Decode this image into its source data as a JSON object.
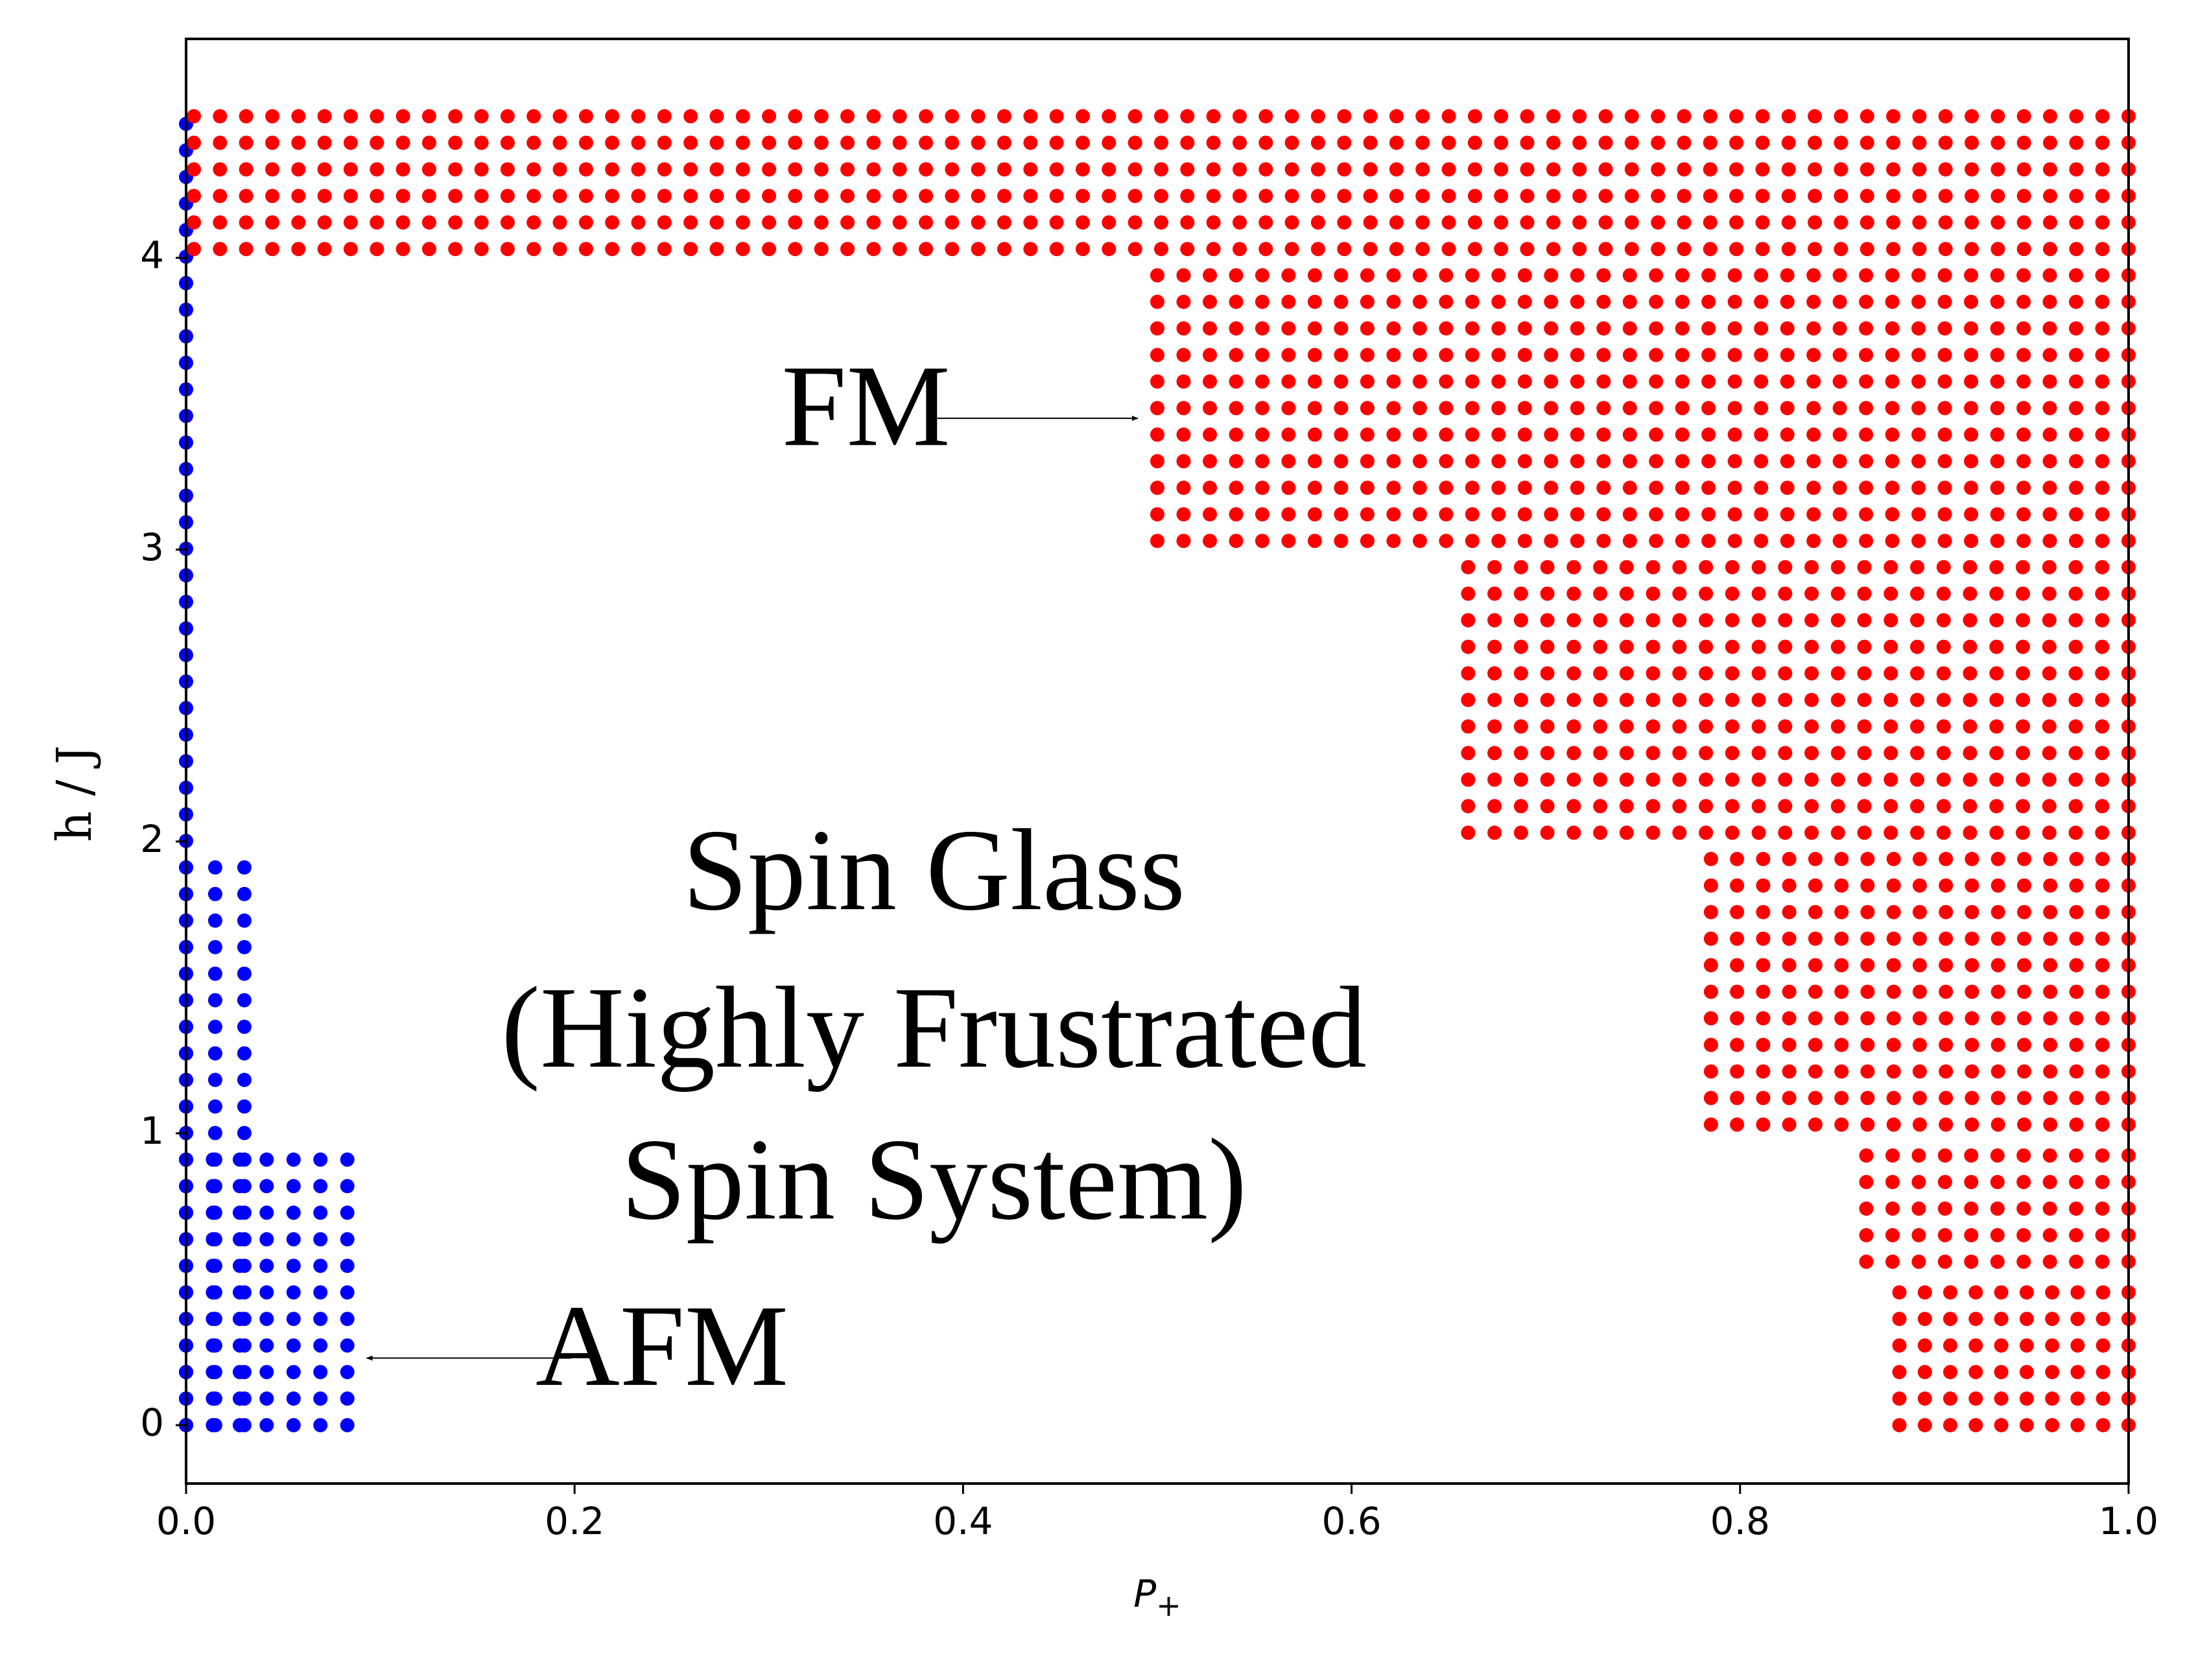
{
  "chart_data": {
    "type": "scatter",
    "title": "",
    "xlabel": "P",
    "xlabel_subscript": "+",
    "ylabel": "h / J",
    "xlim": [
      0.0,
      1.0
    ],
    "ylim": [
      -0.2,
      4.75
    ],
    "grid": false,
    "x_tick_labels": [
      "0.0",
      "0.2",
      "0.4",
      "0.6",
      "0.8",
      "1.0"
    ],
    "x_ticks": [
      0.0,
      0.2,
      0.4,
      0.6,
      0.8,
      1.0
    ],
    "y_tick_labels": [
      "0",
      "1",
      "2",
      "3",
      "4"
    ],
    "y_ticks": [
      0,
      1,
      2,
      3,
      4
    ],
    "grid_step": {
      "p": 0.0135,
      "h": 0.091
    },
    "series": [
      {
        "color": "#0000ff",
        "regions": [
          {
            "x": [
              0.0,
              0.0
            ],
            "y": [
              0.0,
              4.5
            ]
          },
          {
            "x": [
              0.0,
              0.03
            ],
            "y": [
              0.0,
              1.95
            ]
          },
          {
            "x": [
              0.0,
              0.083
            ],
            "y": [
              0.0,
              0.95
            ]
          }
        ]
      },
      {
        "color": "#ff0000",
        "regions": [
          {
            "x": [
              0.004,
              1.0
            ],
            "y": [
              4.03,
              4.5
            ]
          },
          {
            "x": [
              0.5,
              1.0
            ],
            "y": [
              3.03,
              3.97
            ]
          },
          {
            "x": [
              0.66,
              1.0
            ],
            "y": [
              2.03,
              2.97
            ]
          },
          {
            "x": [
              0.785,
              1.0
            ],
            "y": [
              1.03,
              1.97
            ]
          },
          {
            "x": [
              0.865,
              1.0
            ],
            "y": [
              0.56,
              0.95
            ]
          },
          {
            "x": [
              0.882,
              1.0
            ],
            "y": [
              0.0,
              0.5
            ]
          }
        ]
      }
    ],
    "annotations": [
      {
        "text": "FM",
        "x": 0.35,
        "y": 3.45,
        "arrow_to": {
          "x": 0.49,
          "y": 3.45
        }
      },
      {
        "text": "Spin Glass",
        "x": 0.385,
        "y": 1.86
      },
      {
        "text": "(Highly Frustrated",
        "x": 0.385,
        "y": 1.32
      },
      {
        "text": "Spin System)",
        "x": 0.385,
        "y": 0.8
      },
      {
        "text": "AFM",
        "x": 0.245,
        "y": 0.23,
        "arrow_to": {
          "x": 0.093,
          "y": 0.23
        }
      }
    ]
  }
}
